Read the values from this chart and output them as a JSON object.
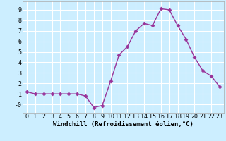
{
  "x": [
    0,
    1,
    2,
    3,
    4,
    5,
    6,
    7,
    8,
    9,
    10,
    11,
    12,
    13,
    14,
    15,
    16,
    17,
    18,
    19,
    20,
    21,
    22,
    23
  ],
  "y": [
    1.2,
    1.0,
    1.0,
    1.0,
    1.0,
    1.0,
    1.0,
    0.8,
    -0.3,
    -0.1,
    2.2,
    4.7,
    5.5,
    7.0,
    7.7,
    7.5,
    9.1,
    9.0,
    7.5,
    6.2,
    4.5,
    3.2,
    2.7,
    1.7
  ],
  "xlabel": "Windchill (Refroidissement éolien,°C)",
  "ylim": [
    -0.8,
    9.8
  ],
  "xlim": [
    -0.5,
    23.5
  ],
  "ytick_vals": [
    0,
    1,
    2,
    3,
    4,
    5,
    6,
    7,
    8,
    9
  ],
  "ytick_labels": [
    "-0",
    "1",
    "2",
    "3",
    "4",
    "5",
    "6",
    "7",
    "8",
    "9"
  ],
  "xticks": [
    0,
    1,
    2,
    3,
    4,
    5,
    6,
    7,
    8,
    9,
    10,
    11,
    12,
    13,
    14,
    15,
    16,
    17,
    18,
    19,
    20,
    21,
    22,
    23
  ],
  "line_color": "#993399",
  "marker": "D",
  "marker_size": 2.5,
  "bg_color": "#cceeff",
  "grid_color": "#ffffff",
  "xlabel_fontsize": 6.5,
  "tick_fontsize": 6.0,
  "linewidth": 1.0,
  "spine_color": "#aaaaaa"
}
